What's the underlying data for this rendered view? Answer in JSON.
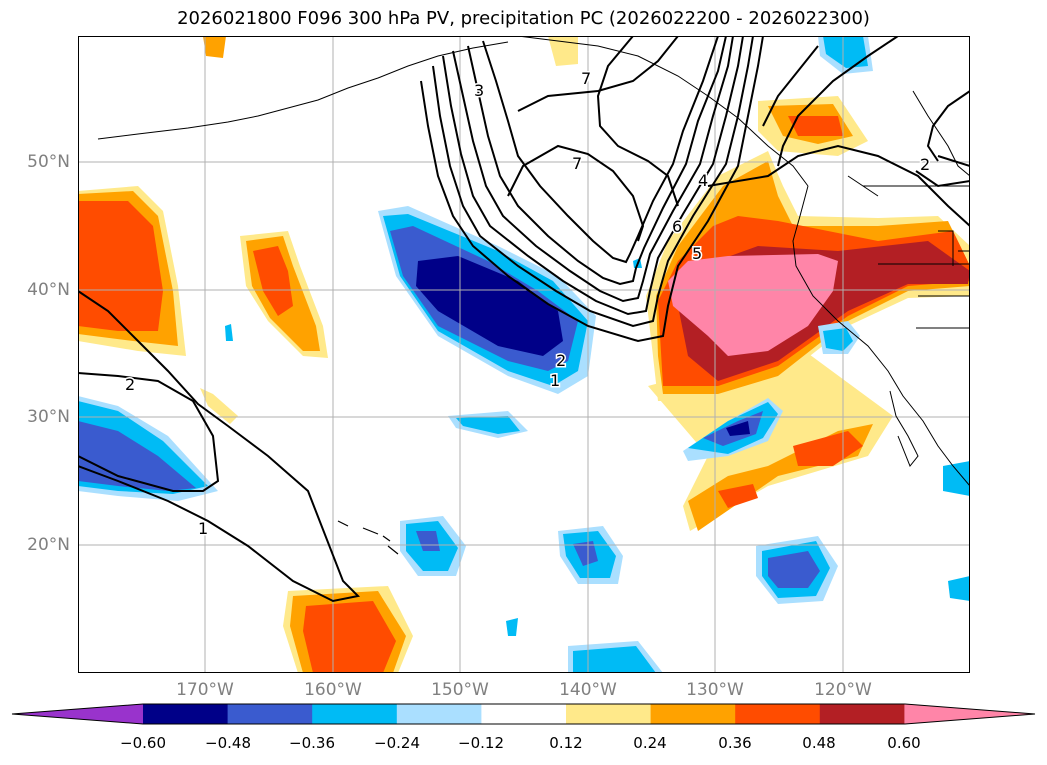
{
  "title": "2026021800 F096 300 hPa PV, precipitation PC (2026022200 - 2026022300)",
  "map": {
    "lat_labels": [
      "50°N",
      "40°N",
      "30°N",
      "20°N"
    ],
    "lon_labels": [
      "170°W",
      "160°W",
      "150°W",
      "140°W",
      "130°W",
      "120°W"
    ],
    "pv_contour_labels": [
      "1",
      "2",
      "3",
      "4",
      "5",
      "6",
      "7",
      "7",
      "2",
      "1",
      "2"
    ]
  },
  "colorbar": {
    "colors": [
      "#9933cc",
      "#000088",
      "#3a5bcf",
      "#00bbf5",
      "#aadfff",
      "#ffffff",
      "#ffe98a",
      "#ffa200",
      "#ff4c00",
      "#b31f24",
      "#ff85a8"
    ],
    "ticks": [
      "−0.60",
      "−0.48",
      "−0.36",
      "−0.24",
      "−0.12",
      "0.12",
      "0.24",
      "0.36",
      "0.48",
      "0.60"
    ]
  }
}
